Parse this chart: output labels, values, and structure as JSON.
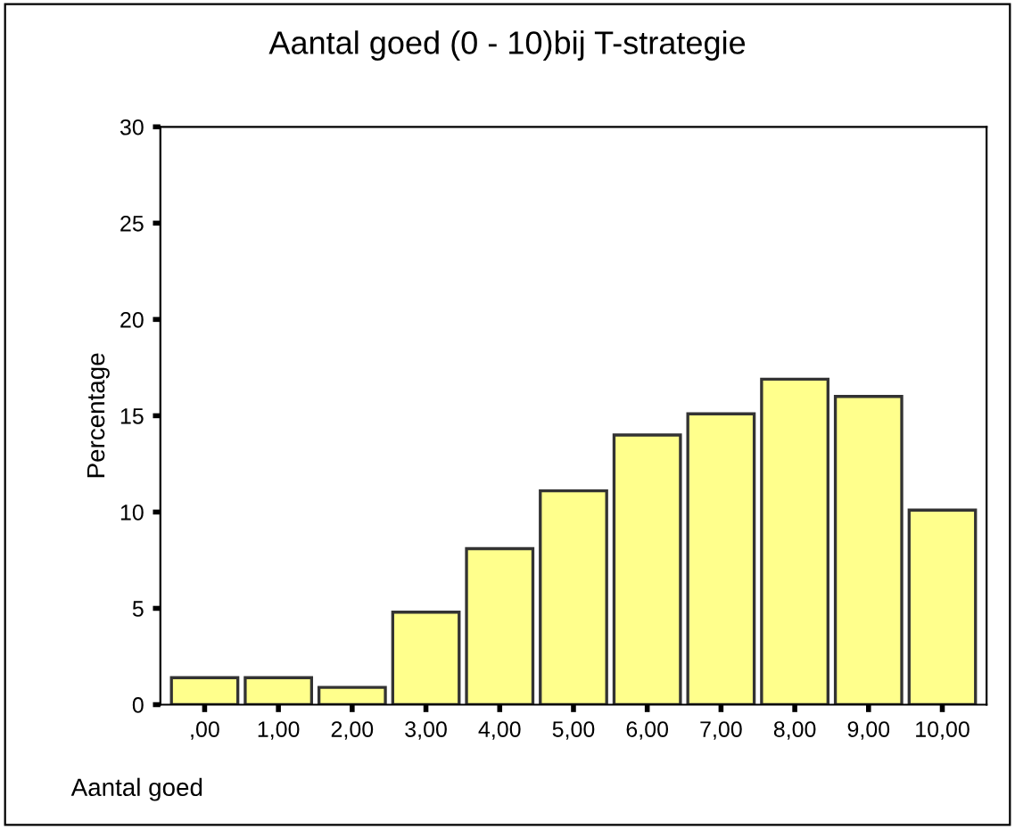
{
  "chart_data": {
    "type": "bar",
    "title": "Aantal goed (0 - 10)bij T-strategie",
    "xlabel": "Aantal goed",
    "ylabel": "Percentage",
    "categories": [
      ",00",
      "1,00",
      "2,00",
      "3,00",
      "4,00",
      "5,00",
      "6,00",
      "7,00",
      "8,00",
      "9,00",
      "10,00"
    ],
    "values": [
      1.4,
      1.4,
      0.9,
      4.8,
      8.1,
      11.1,
      14.0,
      15.1,
      16.9,
      16.0,
      10.1
    ],
    "color": "#ffff8c",
    "ylim": [
      0,
      30
    ],
    "yticks": [
      0,
      5,
      10,
      15,
      20,
      25,
      30
    ],
    "grid": false
  }
}
